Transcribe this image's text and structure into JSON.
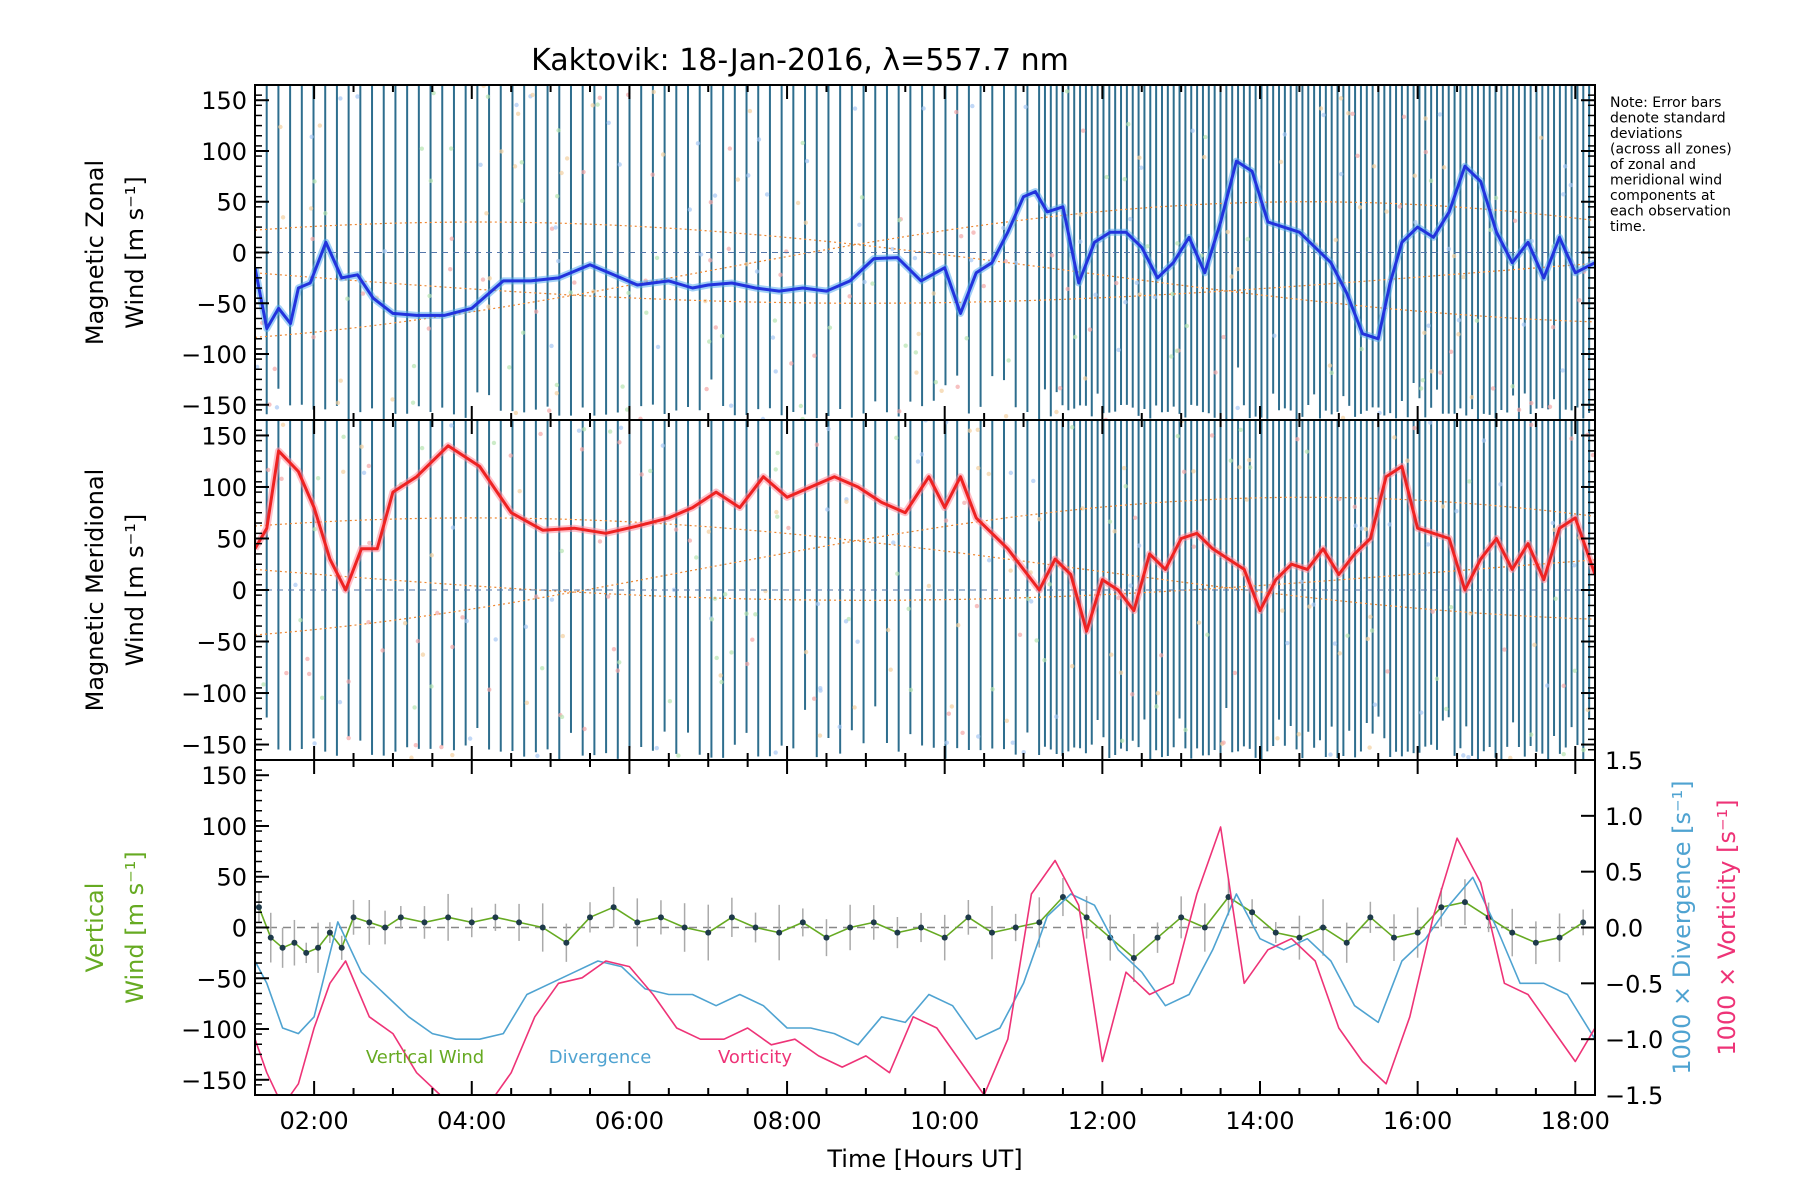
{
  "title": "Kaktovik: 18-Jan-2016, λ=557.7 nm",
  "note_lines": [
    "Note: Error bars",
    "denote standard",
    "deviations",
    "(across all zones)",
    "of zonal and",
    "meridional wind",
    "components at",
    "each observation",
    "time."
  ],
  "colors": {
    "zonal": "#2233dd",
    "zonal_light": "#55aaee",
    "meridional": "#ee2222",
    "meridional_light": "#ff8899",
    "vertical": "#66aa22",
    "divergence": "#4fa3d1",
    "vorticity": "#ee3377",
    "errorbar": "#2e6e8e",
    "model": "#ee8833"
  },
  "chart_data": [
    {
      "type": "line",
      "panel": "zonal",
      "ylabel_line1": "Magnetic Zonal",
      "ylabel_line2": "Wind",
      "ylabel_units": "[m s⁻¹]",
      "ylim": [
        -165,
        165
      ],
      "yticks": [
        150,
        100,
        50,
        0,
        -50,
        -100,
        -150
      ],
      "xlim": [
        1.25,
        18.25
      ],
      "series": [
        {
          "x": [
            1.25,
            1.4,
            1.55,
            1.7,
            1.8,
            1.95,
            2.15,
            2.35,
            2.55,
            2.75,
            3.0,
            3.3,
            3.65,
            4.0,
            4.4,
            4.75,
            5.1,
            5.5,
            5.8,
            6.1,
            6.5,
            6.8,
            7.0,
            7.3,
            7.6,
            7.9,
            8.2,
            8.5,
            8.8,
            9.1,
            9.4,
            9.7,
            10.0,
            10.2,
            10.4,
            10.6,
            10.8,
            11.0,
            11.15,
            11.3,
            11.5,
            11.7,
            11.9,
            12.1,
            12.3,
            12.5,
            12.7,
            12.9,
            13.1,
            13.3,
            13.5,
            13.7,
            13.9,
            14.1,
            14.3,
            14.5,
            14.7,
            14.9,
            15.1,
            15.3,
            15.5,
            15.65,
            15.8,
            16.0,
            16.2,
            16.4,
            16.6,
            16.8,
            17.0,
            17.2,
            17.4,
            17.6,
            17.8,
            18.0,
            18.25
          ],
          "y": [
            -15,
            -75,
            -55,
            -70,
            -35,
            -30,
            10,
            -25,
            -22,
            -45,
            -60,
            -62,
            -62,
            -55,
            -28,
            -28,
            -25,
            -12,
            -22,
            -32,
            -28,
            -35,
            -32,
            -30,
            -35,
            -38,
            -35,
            -38,
            -28,
            -6,
            -5,
            -28,
            -15,
            -60,
            -20,
            -10,
            20,
            55,
            60,
            40,
            45,
            -30,
            10,
            20,
            20,
            5,
            -25,
            -10,
            15,
            -20,
            30,
            90,
            80,
            30,
            25,
            20,
            5,
            -10,
            -40,
            -80,
            -85,
            -30,
            10,
            25,
            15,
            40,
            85,
            70,
            20,
            -10,
            10,
            -25,
            15,
            -20,
            -10
          ]
        }
      ]
    },
    {
      "type": "line",
      "panel": "meridional",
      "ylabel_line1": "Magnetic Meridional",
      "ylabel_line2": "Wind",
      "ylabel_units": "[m s⁻¹]",
      "ylim": [
        -165,
        165
      ],
      "yticks": [
        150,
        100,
        50,
        0,
        -50,
        -100,
        -150
      ],
      "xlim": [
        1.25,
        18.25
      ],
      "series": [
        {
          "x": [
            1.25,
            1.4,
            1.55,
            1.8,
            2.0,
            2.2,
            2.4,
            2.6,
            2.8,
            3.0,
            3.3,
            3.7,
            4.1,
            4.5,
            4.9,
            5.3,
            5.7,
            6.1,
            6.5,
            6.8,
            7.1,
            7.4,
            7.7,
            8.0,
            8.3,
            8.6,
            8.9,
            9.2,
            9.5,
            9.8,
            10.0,
            10.2,
            10.4,
            10.6,
            10.8,
            11.0,
            11.2,
            11.4,
            11.6,
            11.8,
            12.0,
            12.2,
            12.4,
            12.6,
            12.8,
            13.0,
            13.2,
            13.4,
            13.6,
            13.8,
            14.0,
            14.2,
            14.4,
            14.6,
            14.8,
            15.0,
            15.2,
            15.4,
            15.6,
            15.8,
            16.0,
            16.2,
            16.4,
            16.6,
            16.8,
            17.0,
            17.2,
            17.4,
            17.6,
            17.8,
            18.0,
            18.25
          ],
          "y": [
            40,
            60,
            135,
            115,
            80,
            30,
            0,
            40,
            40,
            95,
            110,
            140,
            120,
            75,
            58,
            60,
            55,
            62,
            70,
            80,
            95,
            80,
            110,
            90,
            100,
            110,
            100,
            85,
            75,
            110,
            80,
            110,
            70,
            55,
            40,
            20,
            0,
            30,
            15,
            -40,
            10,
            0,
            -20,
            35,
            20,
            50,
            55,
            40,
            30,
            20,
            -20,
            10,
            25,
            20,
            40,
            15,
            35,
            50,
            110,
            120,
            60,
            55,
            50,
            0,
            30,
            50,
            20,
            45,
            10,
            60,
            70,
            15
          ]
        }
      ]
    },
    {
      "type": "line",
      "panel": "vertical",
      "ylabel_line1": "Vertical",
      "ylabel_line2": "Wind",
      "ylabel_units": "[m s⁻¹]",
      "ylim": [
        -165,
        165
      ],
      "yticks": [
        150,
        100,
        50,
        0,
        -50,
        -100,
        -150
      ],
      "y2lim": [
        -1.5,
        1.5
      ],
      "y2ticks": [
        "1.5",
        "1.0",
        "0.5",
        "0.0",
        "−0.5",
        "−1.0",
        "−1.5"
      ],
      "y2label_div": "1000 × Divergence",
      "y2label_div_units": "[s⁻¹]",
      "y2label_vor": "1000 × Vorticity",
      "y2label_vor_units": "[s⁻¹]",
      "xlim": [
        1.25,
        18.25
      ],
      "xticks": [
        2,
        4,
        6,
        8,
        10,
        12,
        14,
        16,
        18
      ],
      "xtick_labels": [
        "02:00",
        "04:00",
        "06:00",
        "08:00",
        "10:00",
        "12:00",
        "14:00",
        "16:00",
        "18:00"
      ],
      "xlabel": "Time [Hours UT]",
      "legend": [
        "Vertical Wind",
        "Divergence",
        "Vorticity"
      ],
      "series": [
        {
          "name": "Vertical Wind",
          "x": [
            1.3,
            1.45,
            1.6,
            1.75,
            1.9,
            2.05,
            2.2,
            2.35,
            2.5,
            2.7,
            2.9,
            3.1,
            3.4,
            3.7,
            4.0,
            4.3,
            4.6,
            4.9,
            5.2,
            5.5,
            5.8,
            6.1,
            6.4,
            6.7,
            7.0,
            7.3,
            7.6,
            7.9,
            8.2,
            8.5,
            8.8,
            9.1,
            9.4,
            9.7,
            10.0,
            10.3,
            10.6,
            10.9,
            11.2,
            11.5,
            11.8,
            12.1,
            12.4,
            12.7,
            13.0,
            13.3,
            13.6,
            13.9,
            14.2,
            14.5,
            14.8,
            15.1,
            15.4,
            15.7,
            16.0,
            16.3,
            16.6,
            16.9,
            17.2,
            17.5,
            17.8,
            18.1
          ],
          "y": [
            20,
            -10,
            -20,
            -15,
            -25,
            -20,
            -5,
            -20,
            10,
            5,
            0,
            10,
            5,
            10,
            5,
            10,
            5,
            0,
            -15,
            10,
            20,
            5,
            10,
            0,
            -5,
            10,
            0,
            -5,
            5,
            -10,
            0,
            5,
            -5,
            0,
            -10,
            10,
            -5,
            0,
            5,
            30,
            10,
            -10,
            -30,
            -10,
            10,
            0,
            30,
            15,
            -5,
            -10,
            0,
            -15,
            10,
            -10,
            -5,
            20,
            25,
            10,
            -5,
            -15,
            -10,
            5
          ]
        },
        {
          "name": "Divergence",
          "x": [
            1.25,
            1.4,
            1.6,
            1.8,
            2.0,
            2.3,
            2.6,
            2.9,
            3.2,
            3.5,
            3.8,
            4.1,
            4.4,
            4.7,
            5.0,
            5.3,
            5.6,
            5.9,
            6.2,
            6.5,
            6.8,
            7.1,
            7.4,
            7.7,
            8.0,
            8.3,
            8.6,
            8.9,
            9.2,
            9.5,
            9.8,
            10.1,
            10.4,
            10.7,
            11.0,
            11.3,
            11.6,
            11.9,
            12.2,
            12.5,
            12.8,
            13.1,
            13.4,
            13.7,
            14.0,
            14.3,
            14.6,
            14.9,
            15.2,
            15.5,
            15.8,
            16.1,
            16.4,
            16.7,
            17.0,
            17.3,
            17.6,
            17.9,
            18.25
          ],
          "y": [
            -0.3,
            -0.5,
            -0.9,
            -0.95,
            -0.8,
            0.05,
            -0.4,
            -0.6,
            -0.8,
            -0.95,
            -1.0,
            -1.0,
            -0.95,
            -0.6,
            -0.5,
            -0.4,
            -0.3,
            -0.35,
            -0.55,
            -0.6,
            -0.6,
            -0.7,
            -0.6,
            -0.7,
            -0.9,
            -0.9,
            -0.95,
            -1.05,
            -0.8,
            -0.85,
            -0.6,
            -0.7,
            -1.0,
            -0.9,
            -0.5,
            0.1,
            0.3,
            0.2,
            -0.2,
            -0.4,
            -0.7,
            -0.6,
            -0.2,
            0.3,
            -0.1,
            -0.2,
            -0.1,
            -0.3,
            -0.7,
            -0.85,
            -0.3,
            -0.1,
            0.2,
            0.45,
            0.0,
            -0.5,
            -0.5,
            -0.6,
            -1.0
          ]
        },
        {
          "name": "Vorticity",
          "x": [
            1.25,
            1.4,
            1.6,
            1.8,
            2.0,
            2.2,
            2.4,
            2.7,
            3.0,
            3.3,
            3.6,
            3.9,
            4.2,
            4.5,
            4.8,
            5.1,
            5.4,
            5.7,
            6.0,
            6.3,
            6.6,
            6.9,
            7.2,
            7.5,
            7.8,
            8.1,
            8.4,
            8.7,
            9.0,
            9.3,
            9.6,
            9.9,
            10.2,
            10.5,
            10.8,
            11.1,
            11.4,
            11.7,
            12.0,
            12.3,
            12.6,
            12.9,
            13.2,
            13.5,
            13.8,
            14.1,
            14.4,
            14.7,
            15.0,
            15.3,
            15.6,
            15.9,
            16.2,
            16.5,
            16.8,
            17.1,
            17.4,
            17.7,
            18.0,
            18.25
          ],
          "y": [
            -1.0,
            -1.3,
            -1.6,
            -1.4,
            -0.9,
            -0.5,
            -0.3,
            -0.8,
            -0.95,
            -1.3,
            -1.5,
            -1.6,
            -1.6,
            -1.3,
            -0.8,
            -0.5,
            -0.45,
            -0.3,
            -0.35,
            -0.6,
            -0.9,
            -1.0,
            -1.0,
            -0.9,
            -1.05,
            -1.0,
            -1.15,
            -1.25,
            -1.15,
            -1.3,
            -0.8,
            -0.9,
            -1.2,
            -1.5,
            -1.0,
            0.3,
            0.6,
            0.2,
            -1.2,
            -0.4,
            -0.6,
            -0.5,
            0.3,
            0.9,
            -0.5,
            -0.2,
            -0.1,
            -0.3,
            -0.9,
            -1.2,
            -1.4,
            -0.8,
            0.1,
            0.8,
            0.4,
            -0.5,
            -0.6,
            -0.9,
            -1.2,
            -0.9
          ]
        }
      ]
    }
  ]
}
